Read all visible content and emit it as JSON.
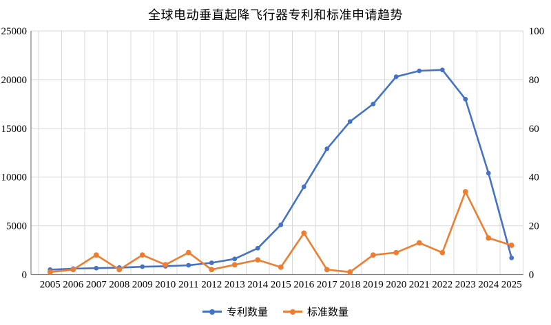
{
  "chart_data": {
    "type": "line",
    "title": "全球电动垂直起降飞行器专利和标准申请趋势",
    "categories": [
      "2005",
      "2006",
      "2007",
      "2008",
      "2009",
      "2010",
      "2011",
      "2012",
      "2013",
      "2014",
      "2015",
      "2016",
      "2017",
      "2018",
      "2019",
      "2020",
      "2021",
      "2022",
      "2023",
      "2024",
      "2025"
    ],
    "series": [
      {
        "name": "专利数量",
        "axis": "left",
        "color": "#4472C4",
        "values": [
          500,
          600,
          650,
          700,
          800,
          850,
          950,
          1200,
          1600,
          2700,
          5100,
          9000,
          12900,
          15700,
          17500,
          20300,
          20900,
          21000,
          18000,
          10400,
          1700
        ]
      },
      {
        "name": "标准数量",
        "axis": "right",
        "color": "#ED7D31",
        "values": [
          1,
          2,
          8,
          2,
          8,
          4,
          9,
          2,
          4,
          6,
          3,
          17,
          2,
          1,
          8,
          9,
          13,
          9,
          34,
          15,
          12
        ]
      }
    ],
    "left_axis": {
      "min": 0,
      "max": 25000,
      "step": 5000,
      "tick_labels": [
        "0",
        "5000",
        "10000",
        "15000",
        "20000",
        "25000"
      ]
    },
    "right_axis": {
      "min": 0,
      "max": 100,
      "step": 20,
      "tick_labels": [
        "0",
        "20",
        "40",
        "60",
        "80",
        "100"
      ]
    },
    "grid": true,
    "legend_position": "bottom",
    "colors": {
      "gridline": "#D9D9D9",
      "axis_line": "#808080",
      "text": "#000000"
    }
  }
}
